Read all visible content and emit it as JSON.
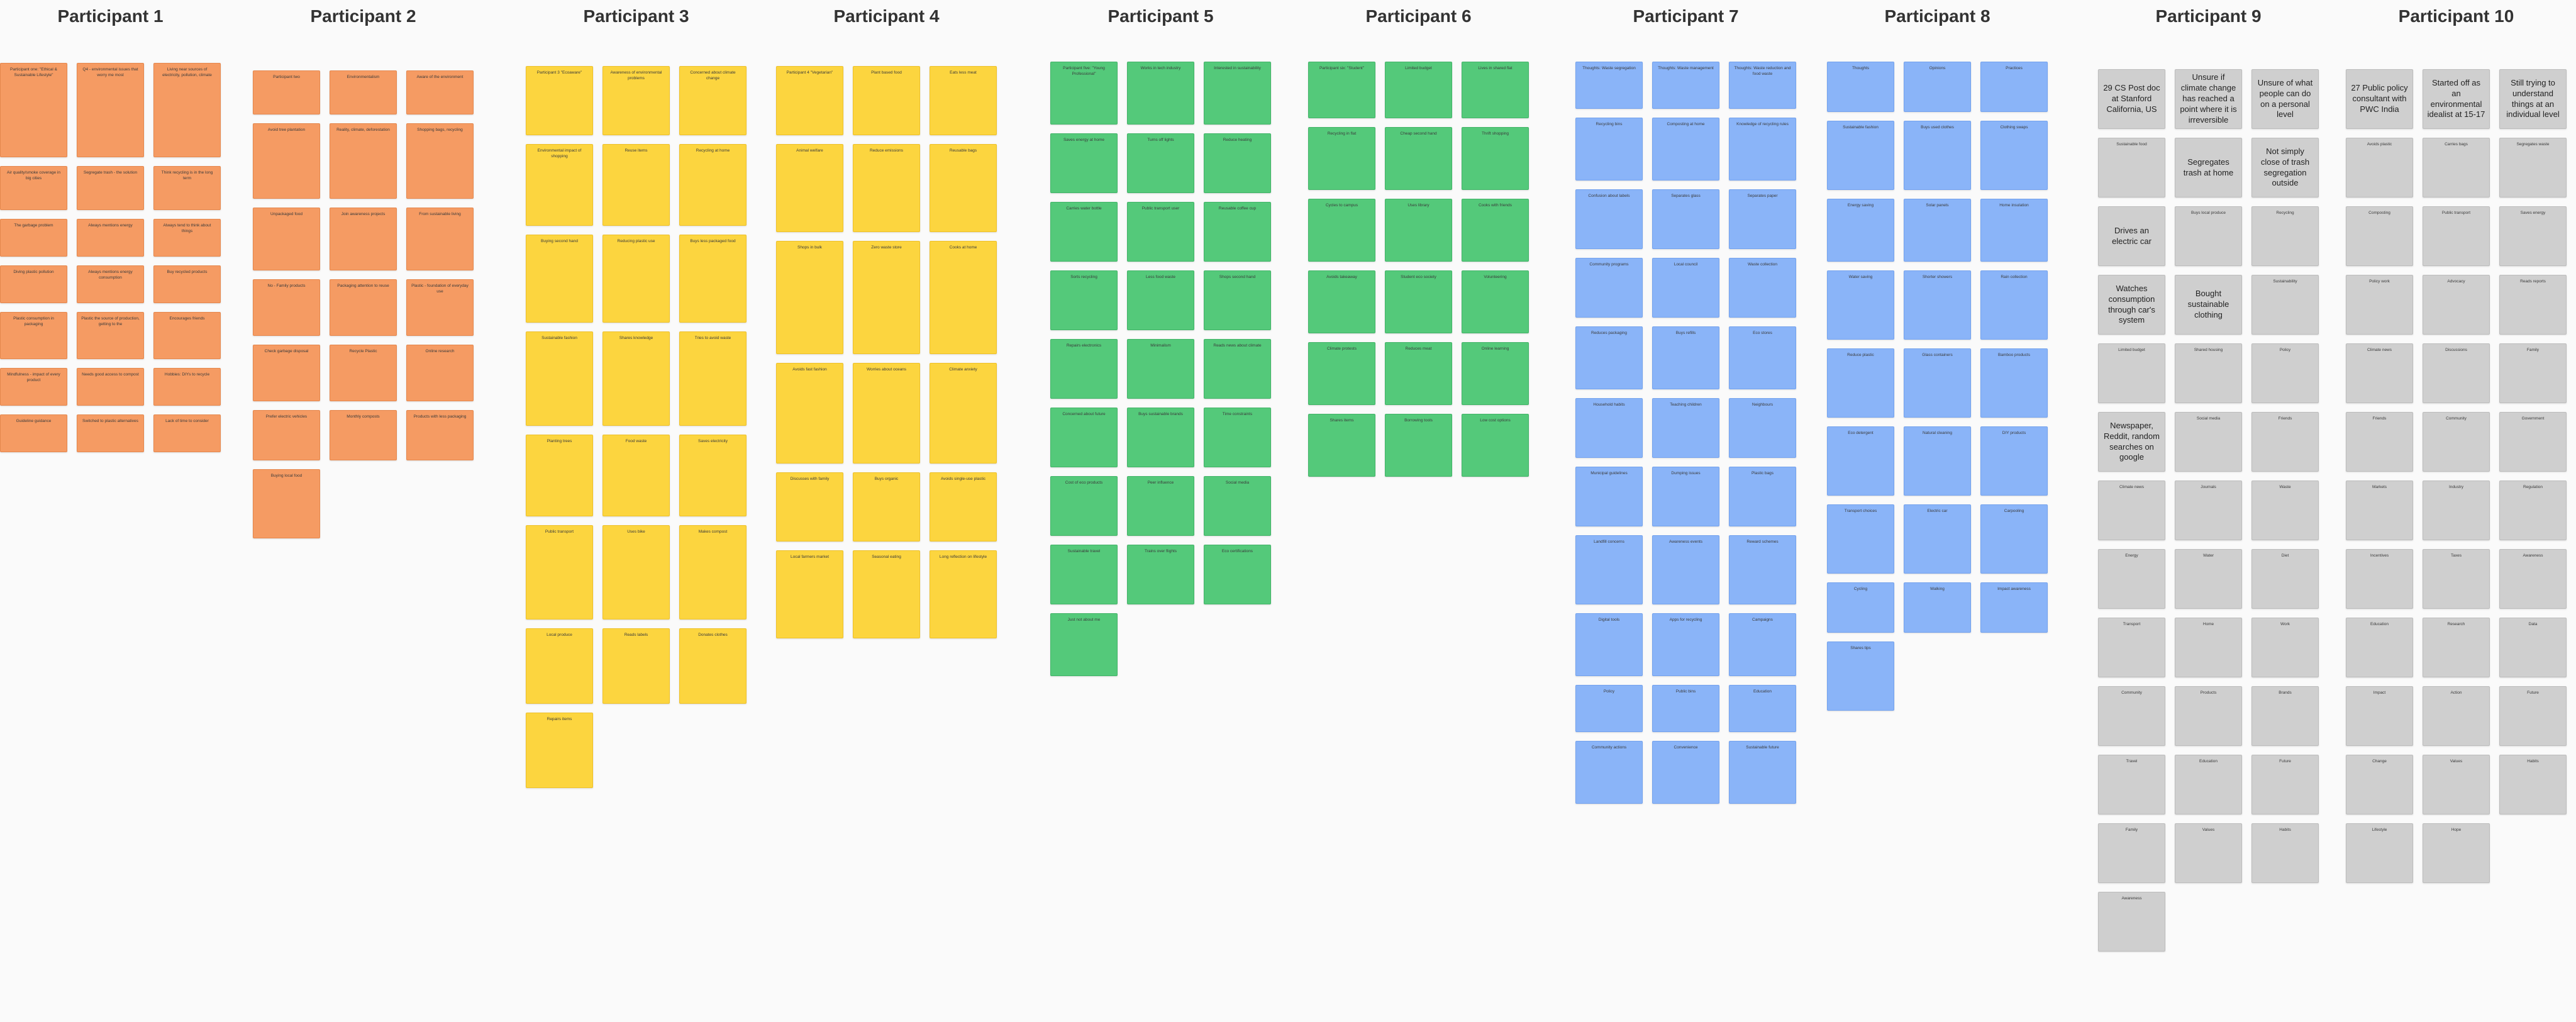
{
  "participants": [
    {
      "title": "Participant 1",
      "color": "orange",
      "notes": [
        "Participant one: \"Ethical & Sustainable Lifestyle\"",
        "Q4 - environmental issues that worry me most",
        "Living near sources of electricity, pollution, climate",
        "Air quality/smoke coverage in big cities",
        "Segregate trash - the solution",
        "Think recycling is in the long term",
        "The garbage problem",
        "Always mentions energy",
        "Always tend to think about things",
        "Diving plastic pollution",
        "Always mentions energy consumption",
        "Buy recycled products",
        "Plastic consumption in packaging",
        "Plastic the source of production, getting to the",
        "Encourages friends",
        "Mindfulness - impact of every product",
        "Needs good access to compost",
        "Hobbies: DIYs to recycle",
        "Guideline guidance",
        "Switched to plastic alternatives",
        "Lack of time to consider"
      ]
    },
    {
      "title": "Participant 2",
      "color": "orange",
      "notes": [
        "Participant two",
        "Environmentalism",
        "Aware of the environment",
        "Avoid tree plantation",
        "Reality, climate, deforestation",
        "Shopping bags, recycling",
        "Unpackaged food",
        "Join awareness projects",
        "From sustainable living",
        "No - Family products",
        "Packaging attention to reuse",
        "Plastic - foundation of everyday use",
        "Check garbage disposal",
        "Recycle Plastic",
        "Online research",
        "Prefer electric vehicles",
        "Monthly composts",
        "Products with less packaging",
        "Buying local food"
      ]
    },
    {
      "title": "Participant 3",
      "color": "yellow",
      "notes": [
        "Participant 3 \"Ecoaware\"",
        "Awareness of environmental problems",
        "Concerned about climate change",
        "Environmental impact of shopping",
        "Reuse items",
        "Recycling at home",
        "Buying second hand",
        "Reducing plastic use",
        "Buys less packaged food",
        "Sustainable fashion",
        "Shares knowledge",
        "Tries to avoid waste",
        "Planting trees",
        "Food waste",
        "Saves electricity",
        "Public transport",
        "Uses bike",
        "Makes compost",
        "Local produce",
        "Reads labels",
        "Donates clothes",
        "Repairs items"
      ]
    },
    {
      "title": "Participant 4",
      "color": "yellow",
      "notes": [
        "Participant 4 \"Vegetarian\"",
        "Plant based food",
        "Eats less meat",
        "Animal welfare",
        "Reduce emissions",
        "Reusable bags",
        "Shops in bulk",
        "Zero waste store",
        "Cooks at home",
        "Avoids fast fashion",
        "Worries about oceans",
        "Climate anxiety",
        "Discusses with family",
        "Buys organic",
        "Avoids single-use plastic",
        "Local farmers market",
        "Seasonal eating",
        "Long reflection on lifestyle"
      ]
    },
    {
      "title": "Participant 5",
      "color": "green",
      "notes": [
        "Participant five: \"Young Professional\"",
        "Works in tech industry",
        "Interested in sustainability",
        "Saves energy at home",
        "Turns off lights",
        "Reduce heating",
        "Carries water bottle",
        "Public transport user",
        "Reusable coffee cup",
        "Sorts recycling",
        "Less food waste",
        "Shops second hand",
        "Repairs electronics",
        "Minimalism",
        "Reads news about climate",
        "Concerned about future",
        "Buys sustainable brands",
        "Time constraints",
        "Cost of eco products",
        "Peer influence",
        "Social media",
        "Sustainable travel",
        "Trains over flights",
        "Eco certifications",
        "Just not about me"
      ]
    },
    {
      "title": "Participant 6",
      "color": "green",
      "notes": [
        "Participant six: \"Student\"",
        "Limited budget",
        "Lives in shared flat",
        "Recycling in flat",
        "Cheap second hand",
        "Thrift shopping",
        "Cycles to campus",
        "Uses library",
        "Cooks with friends",
        "Avoids takeaway",
        "Student eco society",
        "Volunteering",
        "Climate protests",
        "Reduces meat",
        "Online learning",
        "Shares items",
        "Borrowing tools",
        "Low cost options"
      ]
    },
    {
      "title": "Participant 7",
      "color": "blue",
      "notes": [
        "Thoughts: Waste segregation",
        "Thoughts: Waste management",
        "Thoughts: Waste reduction and food waste",
        "Recycling bins",
        "Composting at home",
        "Knowledge of recycling rules",
        "Confusion about labels",
        "Separates glass",
        "Separates paper",
        "Community programs",
        "Local council",
        "Waste collection",
        "Reduces packaging",
        "Buys refills",
        "Eco stores",
        "Household habits",
        "Teaching children",
        "Neighbours",
        "Municipal guidelines",
        "Dumping issues",
        "Plastic bags",
        "Landfill concerns",
        "Awareness events",
        "Reward schemes",
        "Digital tools",
        "Apps for recycling",
        "Campaigns",
        "Policy",
        "Public bins",
        "Education",
        "Community actions",
        "Convenience",
        "Sustainable future"
      ]
    },
    {
      "title": "Participant 8",
      "color": "blue",
      "notes": [
        "Thoughts",
        "Opinions",
        "Practices",
        "Sustainable fashion",
        "Buys used clothes",
        "Clothing swaps",
        "Energy saving",
        "Solar panels",
        "Home insulation",
        "Water saving",
        "Shorter showers",
        "Rain collection",
        "Reduce plastic",
        "Glass containers",
        "Bamboo products",
        "Eco detergent",
        "Natural cleaning",
        "DIY products",
        "Transport choices",
        "Electric car",
        "Carpooling",
        "Cycling",
        "Walking",
        "Impact awareness",
        "Shares tips"
      ]
    },
    {
      "title": "Participant 9",
      "color": "gray",
      "notes": [
        "29 CS Post doc at Stanford California, US",
        "Unsure if climate change has reached a point where it is irreversible",
        "Unsure of what people can do on a personal level",
        "Sustainable food",
        "Segregates trash at home",
        "Not simply close of trash segregation outside",
        "Drives an electric car",
        "Buys local produce",
        "Recycling",
        "Watches consumption through car's system",
        "Bought sustainable clothing",
        "Sustainability",
        "Limited budget",
        "Shared housing",
        "Policy",
        "Newspaper, Reddit, random searches on google",
        "Social media",
        "Friends",
        "Climate news",
        "Journals",
        "Waste",
        "Energy",
        "Water",
        "Diet",
        "Transport",
        "Home",
        "Work",
        "Community",
        "Products",
        "Brands",
        "Travel",
        "Education",
        "Future",
        "Family",
        "Values",
        "Habits",
        "Awareness"
      ]
    },
    {
      "title": "Participant 10",
      "color": "gray",
      "notes": [
        "27 Public policy consultant with PWC India",
        "Started off as an environmental idealist at 15-17",
        "Still trying to understand things at an individual level",
        "Avoids plastic",
        "Carries bags",
        "Segregates waste",
        "Composting",
        "Public transport",
        "Saves energy",
        "Policy work",
        "Advocacy",
        "Reads reports",
        "Climate news",
        "Discussions",
        "Family",
        "Friends",
        "Community",
        "Government",
        "Markets",
        "Industry",
        "Regulation",
        "Incentives",
        "Taxes",
        "Awareness",
        "Education",
        "Research",
        "Data",
        "Impact",
        "Action",
        "Future",
        "Change",
        "Values",
        "Habits",
        "Lifestyle",
        "Hope"
      ]
    }
  ]
}
